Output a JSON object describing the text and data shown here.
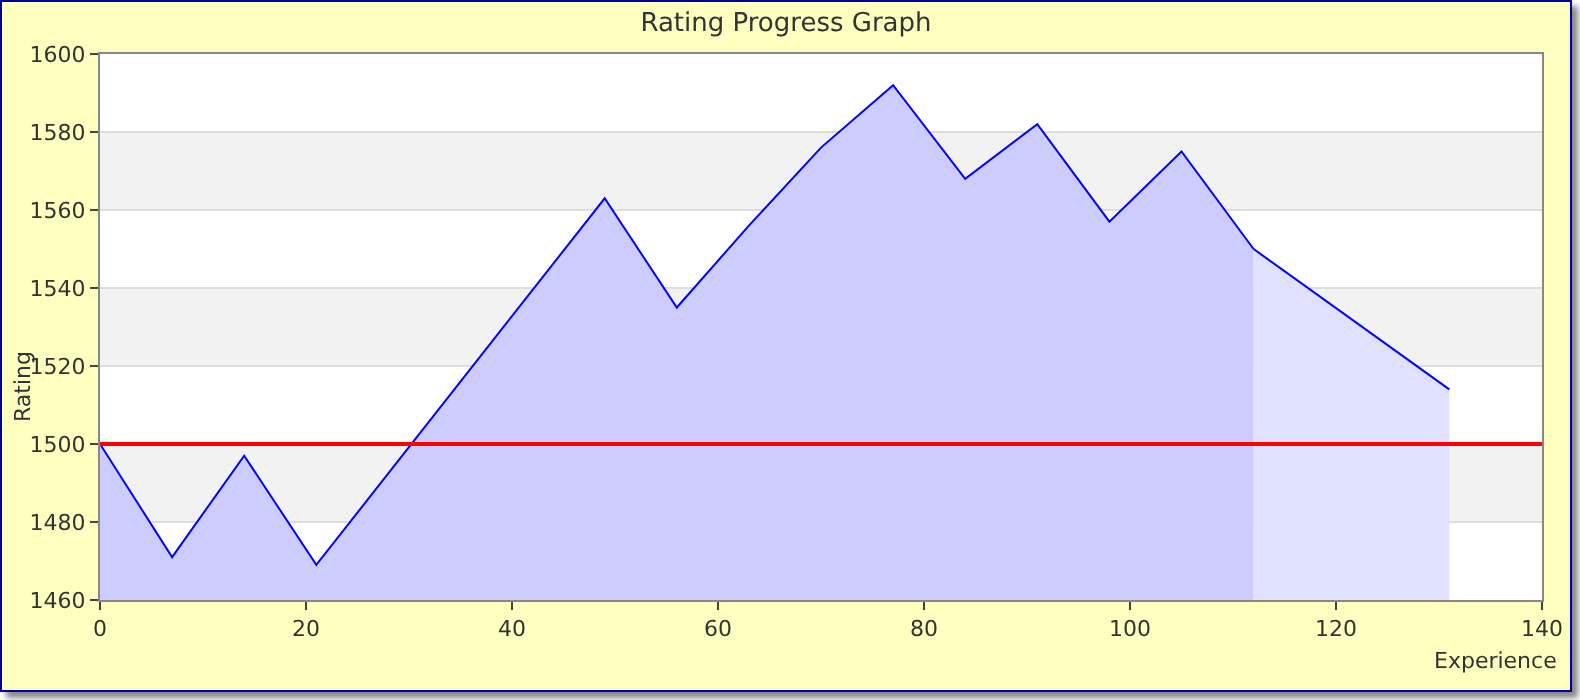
{
  "chart_data": {
    "type": "area",
    "title": "Rating Progress Graph",
    "xlabel": "Experience",
    "ylabel": "Rating",
    "xlim": [
      0,
      140
    ],
    "xticks": [
      0,
      20,
      40,
      60,
      80,
      100,
      120,
      140
    ],
    "ylim": [
      1460,
      1600
    ],
    "yticks": [
      1460,
      1480,
      1500,
      1520,
      1540,
      1560,
      1580,
      1600
    ],
    "grid": "y",
    "ref_lines": [
      {
        "axis": "y",
        "value": 1500,
        "color": "#ff0000"
      }
    ],
    "series": [
      {
        "color": "#0000ff",
        "x": [
          0,
          7,
          14,
          21,
          49,
          56,
          63,
          70,
          77,
          84,
          91,
          98,
          105,
          112
        ],
        "values": [
          1500,
          1471,
          1497,
          1469,
          1563,
          1535,
          1556,
          1576,
          1592,
          1568,
          1582,
          1557,
          1575,
          1550
        ]
      },
      {
        "color": "#0000ff",
        "x": [
          112,
          131
        ],
        "values": [
          1550,
          1514
        ]
      }
    ]
  }
}
